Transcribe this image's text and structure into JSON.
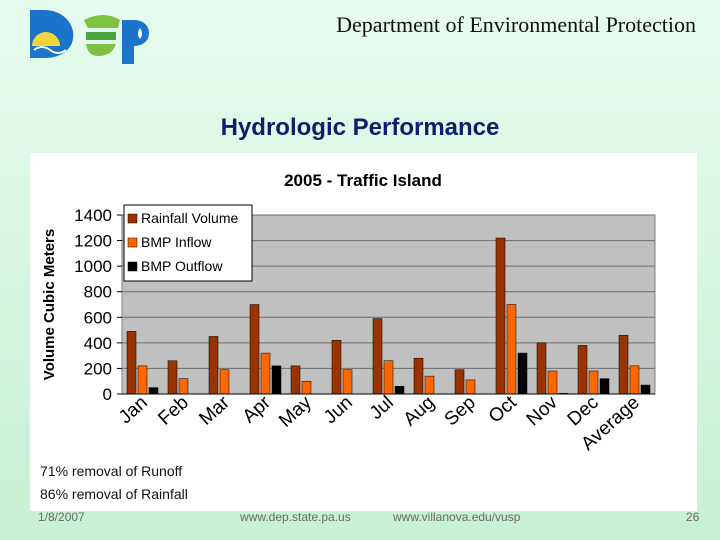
{
  "header": {
    "org_title": "Department of Environmental Protection",
    "logo_text": "Dep"
  },
  "slide_title": "Hydrologic Performance",
  "chart_data": {
    "type": "bar",
    "title": "2005 - Traffic Island",
    "ylabel": "Volume Cubic Meters",
    "xlabel": "",
    "ylim": [
      0,
      1400
    ],
    "y_ticks": [
      0,
      200,
      400,
      600,
      800,
      1000,
      1200,
      1400
    ],
    "grid": true,
    "legend_position": "top-left",
    "categories": [
      "Jan",
      "Feb",
      "Mar",
      "Apr",
      "May",
      "Jun",
      "Jul",
      "Aug",
      "Sep",
      "Oct",
      "Nov",
      "Dec",
      "Average"
    ],
    "series": [
      {
        "name": "Rainfall Volume",
        "color": "#993300",
        "values": [
          490,
          260,
          450,
          700,
          220,
          420,
          590,
          280,
          190,
          1220,
          400,
          380,
          460
        ]
      },
      {
        "name": "BMP Inflow",
        "color": "#ff6600",
        "values": [
          220,
          120,
          190,
          320,
          100,
          190,
          260,
          140,
          110,
          700,
          180,
          180,
          220
        ]
      },
      {
        "name": "BMP Outflow",
        "color": "#000000",
        "values": [
          50,
          0,
          0,
          220,
          0,
          0,
          60,
          0,
          0,
          320,
          5,
          120,
          70
        ]
      }
    ],
    "plot_background": "#c0c0c0"
  },
  "notes": [
    "71% removal of Runoff",
    "86% removal of Rainfall"
  ],
  "footer": {
    "date": "1/8/2007",
    "url1": "www.dep.state.pa.us",
    "url2": "www.villanova.edu/vusp",
    "page_number": "26"
  }
}
